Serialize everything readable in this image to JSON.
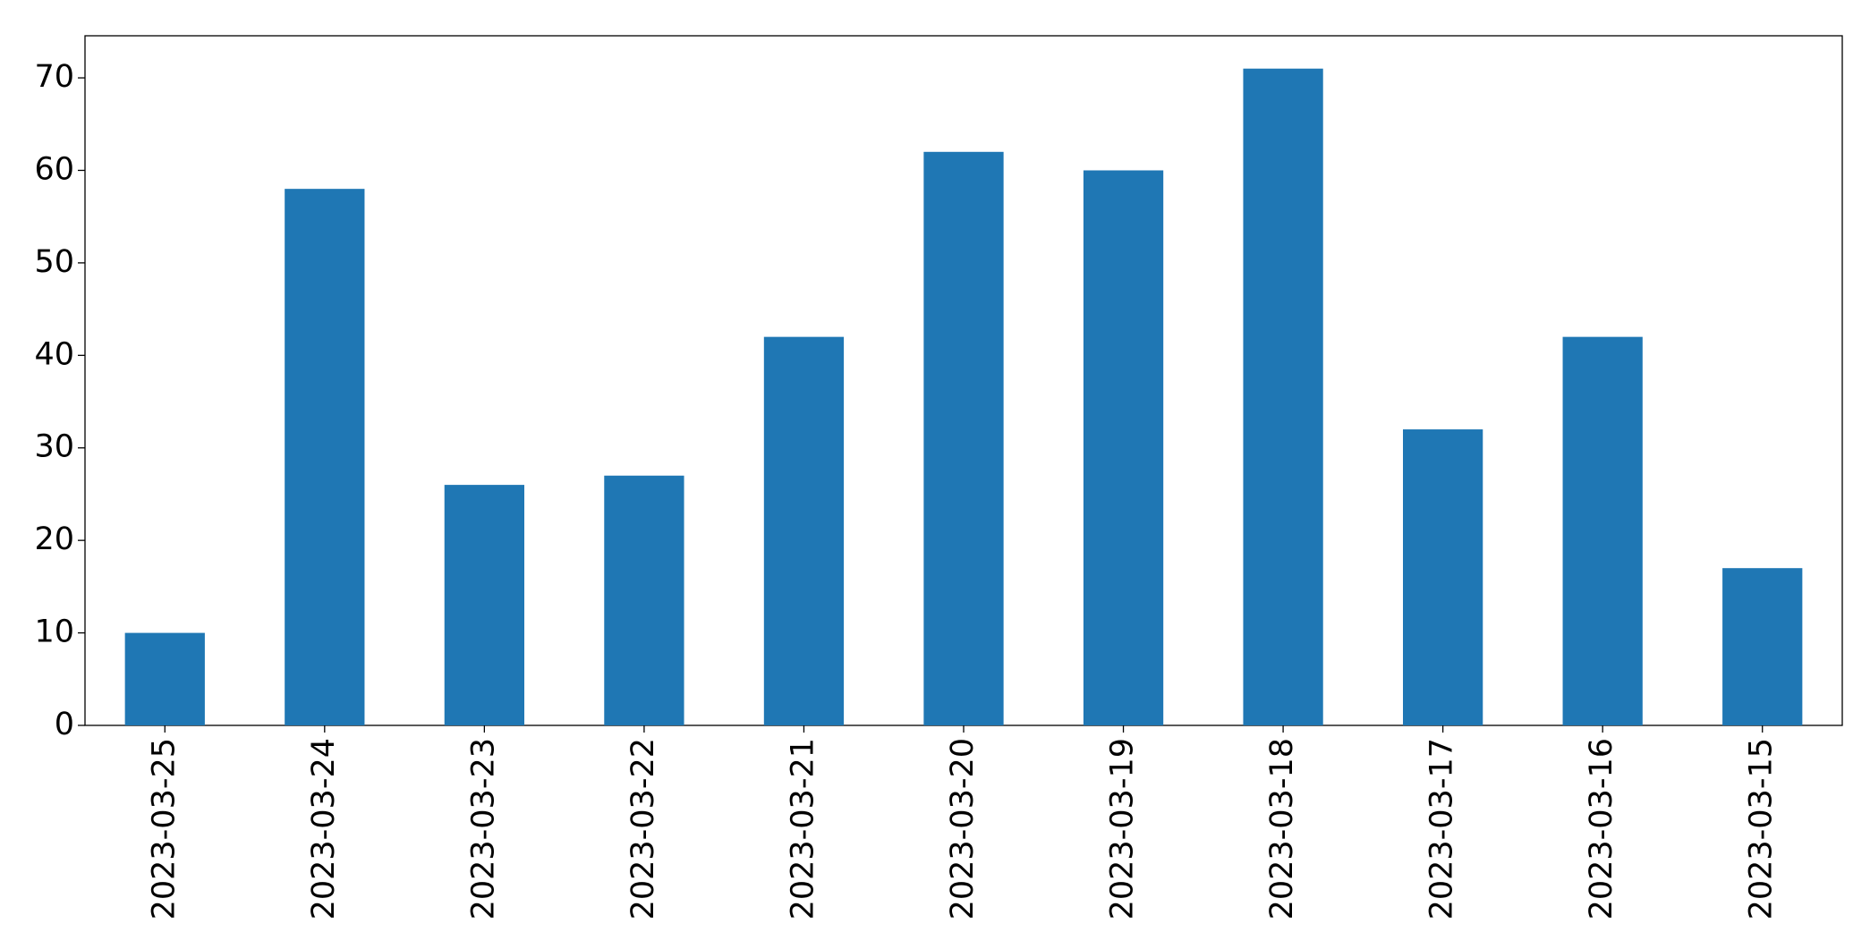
{
  "chart_data": {
    "type": "bar",
    "categories": [
      "2023-03-25",
      "2023-03-24",
      "2023-03-23",
      "2023-03-22",
      "2023-03-21",
      "2023-03-20",
      "2023-03-19",
      "2023-03-18",
      "2023-03-17",
      "2023-03-16",
      "2023-03-15"
    ],
    "values": [
      10,
      58,
      26,
      27,
      42,
      62,
      60,
      71,
      32,
      42,
      17
    ],
    "color": "#1f77b4",
    "ylim": [
      0,
      74.55
    ],
    "yticks": [
      0,
      10,
      20,
      30,
      40,
      50,
      60,
      70
    ],
    "grid": false
  }
}
